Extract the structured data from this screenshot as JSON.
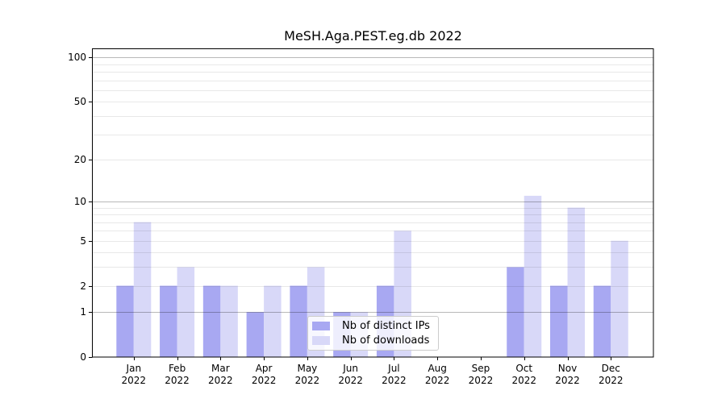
{
  "chart_data": {
    "type": "bar",
    "title": "MeSH.Aga.PEST.eg.db 2022",
    "categories": [
      "Jan",
      "Feb",
      "Mar",
      "Apr",
      "May",
      "Jun",
      "Jul",
      "Aug",
      "Sep",
      "Oct",
      "Nov",
      "Dec"
    ],
    "year": "2022",
    "series": [
      {
        "name": "Nb of distinct IPs",
        "color": "#a8a8f2",
        "values": [
          2,
          2,
          2,
          1,
          2,
          1,
          2,
          0,
          0,
          3,
          2,
          2
        ]
      },
      {
        "name": "Nb of downloads",
        "color": "#d8d8f8",
        "values": [
          7,
          3,
          2,
          2,
          3,
          1,
          6,
          0,
          0,
          11,
          9,
          5
        ]
      }
    ],
    "yscale": "log10(1+y)",
    "ylim": [
      0,
      114
    ],
    "yticks": [
      0,
      1,
      2,
      5,
      10,
      20,
      50,
      100
    ],
    "grid_major": [
      1,
      10,
      100
    ],
    "grid_minor": [
      2,
      3,
      4,
      5,
      6,
      7,
      8,
      9,
      20,
      30,
      40,
      50,
      60,
      70,
      80,
      90
    ],
    "grid": "on",
    "legend_position": "lower center"
  }
}
